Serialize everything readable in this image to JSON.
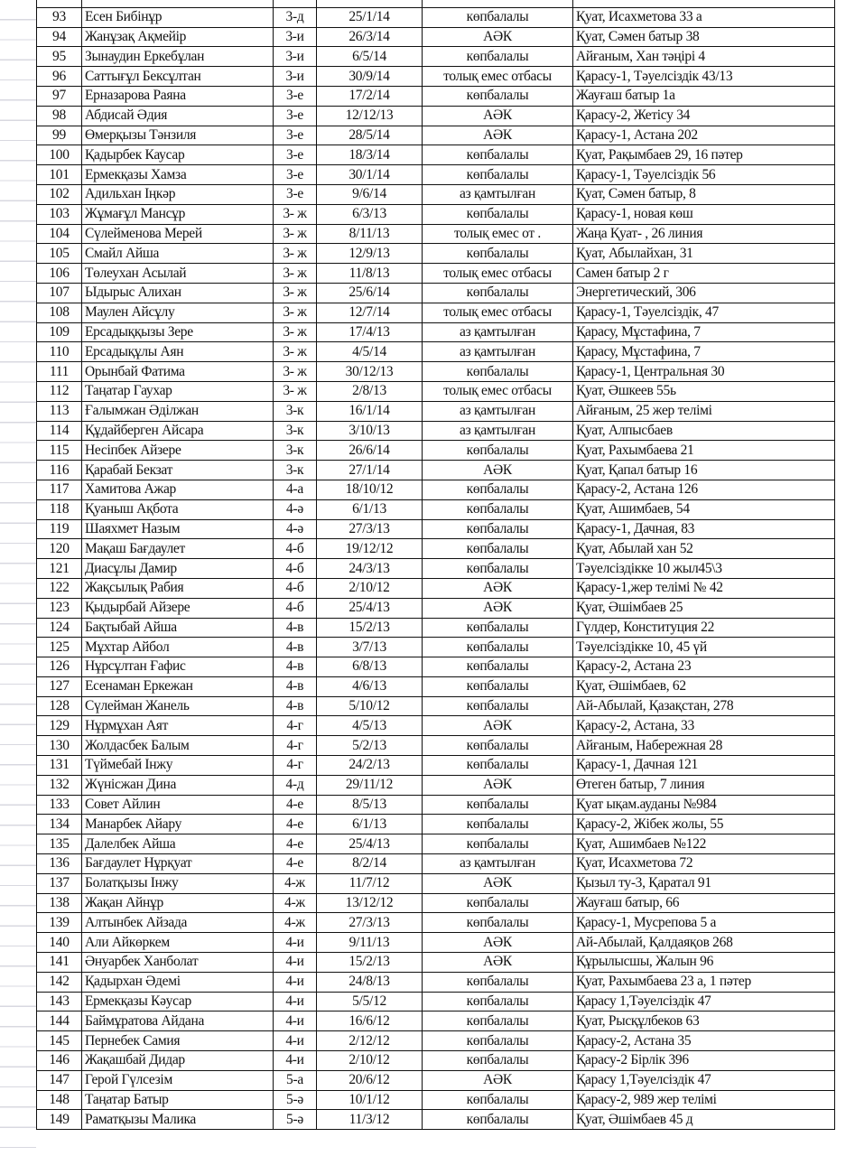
{
  "rows": [
    [
      "93",
      "Есен Бибінұр",
      "3-д",
      "25/1/14",
      "көпбалалы",
      "Қуат, Исахметова 33 а"
    ],
    [
      "94",
      "Жанұзақ Ақмейір",
      "3-и",
      "26/3/14",
      "АӘК",
      "Қуат, Сәмен батыр 38"
    ],
    [
      "95",
      "Зынаудин Еркебұлан",
      "3-и",
      "6/5/14",
      "көпбалалы",
      "Айғаным, Хан тәңірі 4"
    ],
    [
      "96",
      "Саттығұл Бексұлтан",
      "3-и",
      "30/9/14",
      "толық емес отбасы",
      "Қарасу-1, Тәуелсіздік 43/13"
    ],
    [
      "97",
      "Ерназарова Раяна",
      "3-е",
      "17/2/14",
      "көпбалалы",
      "Жауғаш батыр 1а"
    ],
    [
      "98",
      "Абдисай Әдия",
      "3-е",
      "12/12/13",
      "АӘК",
      "Қарасу-2, Жетісу 34"
    ],
    [
      "99",
      "Өмерқызы Тәнзиля",
      "3-е",
      "28/5/14",
      "АӘК",
      "Қарасу-1, Астана 202"
    ],
    [
      "100",
      "Қадырбек Каусар",
      "3-е",
      "18/3/14",
      "көпбалалы",
      "Қуат, Рақымбаев 29, 16 пәтер"
    ],
    [
      "101",
      "Ермекқазы Хамза",
      "3-е",
      "30/1/14",
      "көпбалалы",
      "Қарасу-1, Тәуелсіздік 56"
    ],
    [
      "102",
      "Адильхан Іңкәр",
      "3-е",
      "9/6/14",
      "аз қамтылған",
      "Қуат, Сәмен батыр, 8"
    ],
    [
      "103",
      "Жұмағұл Мансұр",
      "3- ж",
      "6/3/13",
      "көпбалалы",
      "Қарасу-1, новая көш"
    ],
    [
      "104",
      "Сүлейменова Мерей",
      "3- ж",
      "8/11/13",
      "толық емес от .",
      "Жаңа Қуат- , 26 линия"
    ],
    [
      "105",
      "Смайл Айша",
      "3- ж",
      "12/9/13",
      "көпбалалы",
      "Қуат, Абылайхан, 31"
    ],
    [
      "106",
      "Төлеухан Асылай",
      "3- ж",
      "11/8/13",
      "толық емес отбасы",
      "Самен батыр 2 г"
    ],
    [
      "107",
      "Ыдырыс Алихан",
      "3- ж",
      "25/6/14",
      "көпбалалы",
      "Энергетический, 306"
    ],
    [
      "108",
      "Маулен Айсұлу",
      "3- ж",
      "12/7/14",
      "толық емес отбасы",
      "Қарасу-1, Тәуелсіздік, 47"
    ],
    [
      "109",
      "Ерсадыққызы Зере",
      "3- ж",
      "17/4/13",
      "аз қамтылған",
      "Қарасу, Мұстафина, 7"
    ],
    [
      "110",
      "Ерсадықұлы Аян",
      "3- ж",
      "4/5/14",
      "аз қамтылған",
      "Қарасу, Мұстафина, 7"
    ],
    [
      "111",
      "Орынбай Фатима",
      "3- ж",
      "30/12/13",
      "көпбалалы",
      "Қарасу-1, Центральная 30"
    ],
    [
      "112",
      "Таңатар Гаухар",
      "3- ж",
      "2/8/13",
      "толық емес отбасы",
      "Қуат, Әшкеев 55ь"
    ],
    [
      "113",
      "Ғалымжан Әділжан",
      "3-к",
      "16/1/14",
      "аз қамтылған",
      "Айғаным, 25 жер телімі"
    ],
    [
      "114",
      "Құдайберген Айсара",
      "3-к",
      "3/10/13",
      "аз қамтылған",
      "Қуат, Алпысбаев"
    ],
    [
      "115",
      "Несіпбек Айзере",
      "3-к",
      "26/6/14",
      "көпбалалы",
      "Қуат,  Рахымбаева 21"
    ],
    [
      "116",
      "Қарабай Бекзат",
      "3-к",
      "27/1/14",
      "АӘК",
      "Қуат, Қапал батыр 16"
    ],
    [
      "117",
      "Хамитова Ажар",
      "4-а",
      "18/10/12",
      "көпбалалы",
      "Қарасу-2, Астана 126"
    ],
    [
      "118",
      "Қуаныш Ақбота",
      "4-ә",
      "6/1/13",
      "көпбалалы",
      "Қуат, Ашимбаев, 54"
    ],
    [
      "119",
      "Шаяхмет Назым",
      "4-ә",
      "27/3/13",
      "көпбалалы",
      "Қарасу-1, Дачная, 83"
    ],
    [
      "120",
      "Мақаш Бағдаулет",
      "4-б",
      "19/12/12",
      "көпбалалы",
      "Қуат, Абылай хан 52"
    ],
    [
      "121",
      "Диасұлы Дамир",
      "4-б",
      "24/3/13",
      "көпбалалы",
      "Тәуелсіздікке 10 жыл45\\3"
    ],
    [
      "122",
      "Жақсылық Рабия",
      "4-б",
      "2/10/12",
      "АӘК",
      "Қарасу-1,жер телімі  № 42"
    ],
    [
      "123",
      "Қыдырбай Айзере",
      "4-б",
      "25/4/13",
      "АӘК",
      "Қуат, Әшімбаев 25"
    ],
    [
      "124",
      "Бақтыбай Айша",
      "4-в",
      "15/2/13",
      "көпбалалы",
      "Гүлдер, Конституция  22"
    ],
    [
      "125",
      "Мұхтар Айбол",
      "4-в",
      "3/7/13",
      "көпбалалы",
      "Тәуелсіздікке 10, 45 үй"
    ],
    [
      "126",
      "Нұрсұлтан Ғафис",
      "4-в",
      "6/8/13",
      "көпбалалы",
      "Қарасу-2, Астана 23"
    ],
    [
      "127",
      "Есенаман Еркежан",
      "4-в",
      "4/6/13",
      "көпбалалы",
      "Қуат, Әшімбаев, 62"
    ],
    [
      "128",
      "Сүлейман Жанель",
      "4-в",
      "5/10/12",
      "көпбалалы",
      "Ай-Абылай, Қазақстан, 278"
    ],
    [
      "129",
      "Нұрмұхан Аят",
      "4-г",
      "4/5/13",
      "АӘК",
      "Қарасу-2, Астана, 33"
    ],
    [
      "130",
      "Жолдасбек Балым",
      "4-г",
      "5/2/13",
      "көпбалалы",
      "Айғаным, Набережная 28"
    ],
    [
      "131",
      "Түймебай Інжу",
      "4-г",
      "24/2/13",
      "көпбалалы",
      "Қарасу-1, Дачная 121"
    ],
    [
      "132",
      "Жүнісжан Дина",
      "4-д",
      "29/11/12",
      "АӘК",
      "Өтеген батыр, 7 линия"
    ],
    [
      "133",
      "Совет Айлин",
      "4-е",
      "8/5/13",
      "көпбалалы",
      "Қуат ықам.ауданы №984"
    ],
    [
      "134",
      "Манарбек Айару",
      "4-е",
      "6/1/13",
      "көпбалалы",
      "Қарасу-2, Жібек жолы, 55"
    ],
    [
      "135",
      "Далелбек Айша",
      "4-е",
      "25/4/13",
      "көпбалалы",
      "Қуат, Ашимбаев №122"
    ],
    [
      "136",
      "Бағдаулет Нұрқуат",
      "4-е",
      "8/2/14",
      "аз қамтылған",
      "Қуат, Исахметова 72"
    ],
    [
      "137",
      "Болатқызы Інжу",
      "4-ж",
      "11/7/12",
      "АӘК",
      "Қызыл ту-3, Қаратал 91"
    ],
    [
      "138",
      "Жақан Айнұр",
      "4-ж",
      "13/12/12",
      "көпбалалы",
      "Жауғаш батыр, 66"
    ],
    [
      "139",
      "Алтынбек Айзада",
      "4-ж",
      "27/3/13",
      "көпбалалы",
      "Қарасу-1, Мусрепова 5 а"
    ],
    [
      "140",
      "Али Айкөркем",
      "4-и",
      "9/11/13",
      "АӘК",
      "Ай-Абылай, Қалдаяқов 268"
    ],
    [
      "141",
      "Әнуарбек Ханболат",
      "4-и",
      "15/2/13",
      "АӘК",
      "Құрылысшы, Жалын 96"
    ],
    [
      "142",
      "Қадырхан Әдемі",
      "4-и",
      "24/8/13",
      "көпбалалы",
      "Қуат, Рахымбаева 23 а, 1 пәтер"
    ],
    [
      "143",
      "Ермекқазы Кәусар",
      "4-и",
      "5/5/12",
      "көпбалалы",
      "Қарасу 1,Тәуелсіздік 47"
    ],
    [
      "144",
      "Баймұратова Айдана",
      "4-и",
      "16/6/12",
      "көпбалалы",
      "Қуат, Рысқұлбеков 63"
    ],
    [
      "145",
      "Пернебек Самия",
      "4-и",
      "2/12/12",
      "көпбалалы",
      "Қарасу-2, Астана 35"
    ],
    [
      "146",
      "Жақашбай Дидар",
      "4-и",
      "2/10/12",
      "көпбалалы",
      "Қарасу-2 Бірлік 396"
    ],
    [
      "147",
      "Герой Гүлсезім",
      "5-а",
      "20/6/12",
      "АӘК",
      "Қарасу 1,Тәуелсіздік 47"
    ],
    [
      "148",
      "Таңатар Батыр",
      "5-ә",
      "10/1/12",
      "көпбалалы",
      "Қарасу-2, 989 жер телімі"
    ],
    [
      "149",
      "Раматқызы Малика",
      "5-ә",
      "11/3/12",
      "көпбалалы",
      "Қуат, Әшімбаев 45 д"
    ]
  ]
}
